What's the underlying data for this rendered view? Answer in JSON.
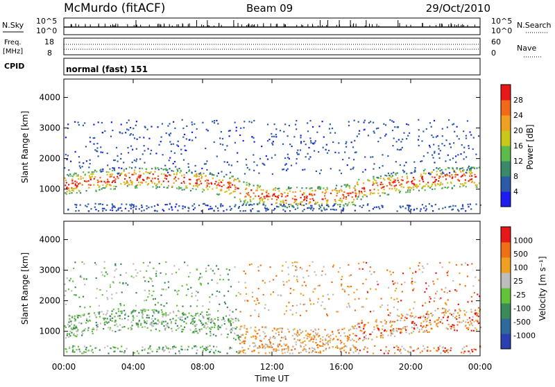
{
  "header": {
    "station": "McMurdo (fitACF)",
    "beam": "Beam 09",
    "date": "29/Oct/2010"
  },
  "top_panels": {
    "nsky_label": "N.Sky",
    "nsearch_label": "N.Search",
    "nsky_ticks": [
      "10^5",
      "10^0"
    ],
    "freq_label_1": "Freq.",
    "freq_label_2": "[MHz]",
    "freq_ticks": [
      "18",
      "8"
    ],
    "nave_label": "Nave",
    "nave_ticks": [
      "60",
      "0"
    ],
    "cpid_label": "CPID",
    "cpid_value": "normal (fast) 151"
  },
  "chart_data": [
    {
      "type": "heatmap",
      "name": "power",
      "ylabel": "Slant Range [km]",
      "ylim": [
        200,
        4600
      ],
      "yticks": [
        "1000",
        "2000",
        "3000",
        "4000"
      ],
      "colorbar_label": "Power [dB]",
      "colorbar_ticks": [
        "4",
        "8",
        "12",
        "16",
        "20",
        "24",
        "28"
      ],
      "colorbar_range": [
        0,
        32
      ],
      "colors": [
        "#1c1cf0",
        "#2c5aa8",
        "#3a8a6a",
        "#5dbb49",
        "#c8c81a",
        "#f0a020",
        "#f06a18",
        "#e81818"
      ]
    },
    {
      "type": "heatmap",
      "name": "velocity",
      "ylabel": "Slant Range [km]",
      "ylim": [
        200,
        4600
      ],
      "yticks": [
        "1000",
        "2000",
        "3000",
        "4000"
      ],
      "colorbar_label": "Velocity [m s⁻¹]",
      "colorbar_ticks": [
        "1000",
        "500",
        "100",
        "25",
        "-25",
        "-100",
        "-500",
        "-1000"
      ],
      "colors": [
        "#2a3fb0",
        "#2e6a9a",
        "#3a8a5a",
        "#62c23a",
        "#bdbdbd",
        "#f0a020",
        "#f07018",
        "#e81818"
      ]
    }
  ],
  "xaxis": {
    "label": "Time UT",
    "ticks": [
      "00:00",
      "04:00",
      "08:00",
      "12:00",
      "16:00",
      "20:00",
      "00:00"
    ]
  }
}
